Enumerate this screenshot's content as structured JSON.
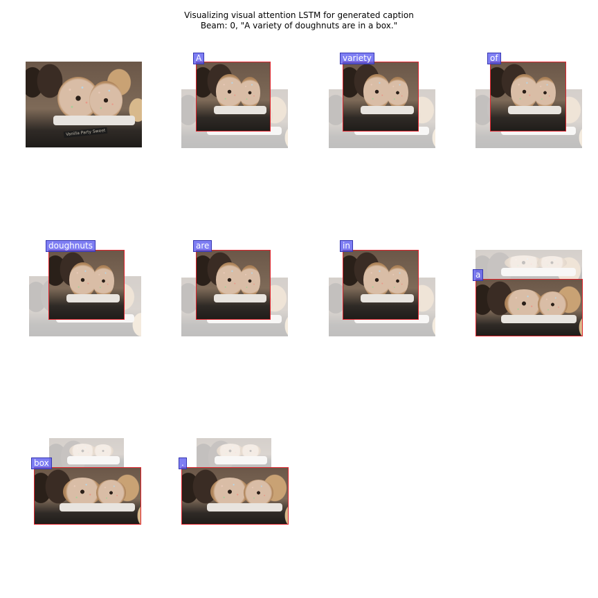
{
  "title": {
    "line1": "Visualizing visual attention LSTM for generated caption",
    "line2": "Beam: 0, \"A variety of doughnuts are in a box.\""
  },
  "photo": {
    "sign_text": "Vanilla Party Sweet"
  },
  "words": [
    "A",
    "variety",
    "of",
    "doughnuts",
    "are",
    "in",
    "a",
    "box",
    "."
  ],
  "colors": {
    "attention_box": "#e0232c",
    "label_fill": "#7a7af0",
    "label_border": "#3535b0"
  }
}
